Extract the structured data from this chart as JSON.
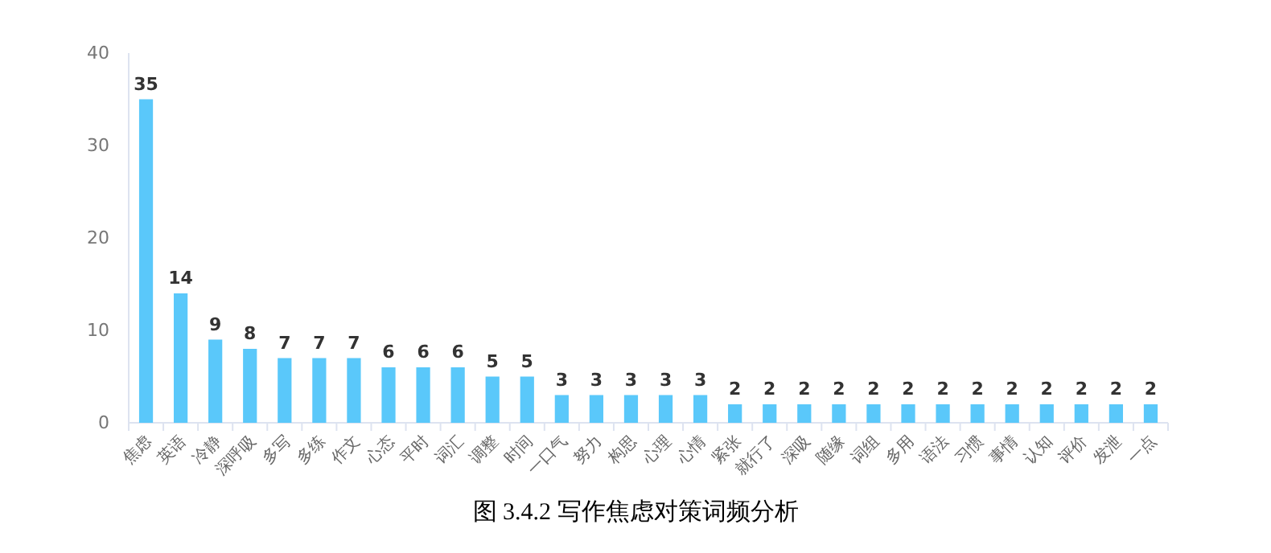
{
  "chart_data": {
    "type": "bar",
    "categories": [
      "焦虑",
      "英语",
      "冷静",
      "深呼吸",
      "多写",
      "多练",
      "作文",
      "心态",
      "平时",
      "词汇",
      "调整",
      "时间",
      "一口气",
      "努力",
      "构思",
      "心理",
      "心情",
      "紧张",
      "就行了",
      "深吸",
      "随缘",
      "词组",
      "多用",
      "语法",
      "习惯",
      "事情",
      "认知",
      "评价",
      "发泄",
      "一点"
    ],
    "values": [
      35,
      14,
      9,
      8,
      7,
      7,
      7,
      6,
      6,
      6,
      5,
      5,
      3,
      3,
      3,
      3,
      3,
      2,
      2,
      2,
      2,
      2,
      2,
      2,
      2,
      2,
      2,
      2,
      2,
      2
    ],
    "color": "#5ac8fa",
    "ylim": [
      0,
      40
    ],
    "yticks": [
      0,
      10,
      20,
      30,
      40
    ],
    "data_labels": true,
    "annotations": [
      "图 3.4.2 写作焦虑对策词频分析"
    ]
  }
}
